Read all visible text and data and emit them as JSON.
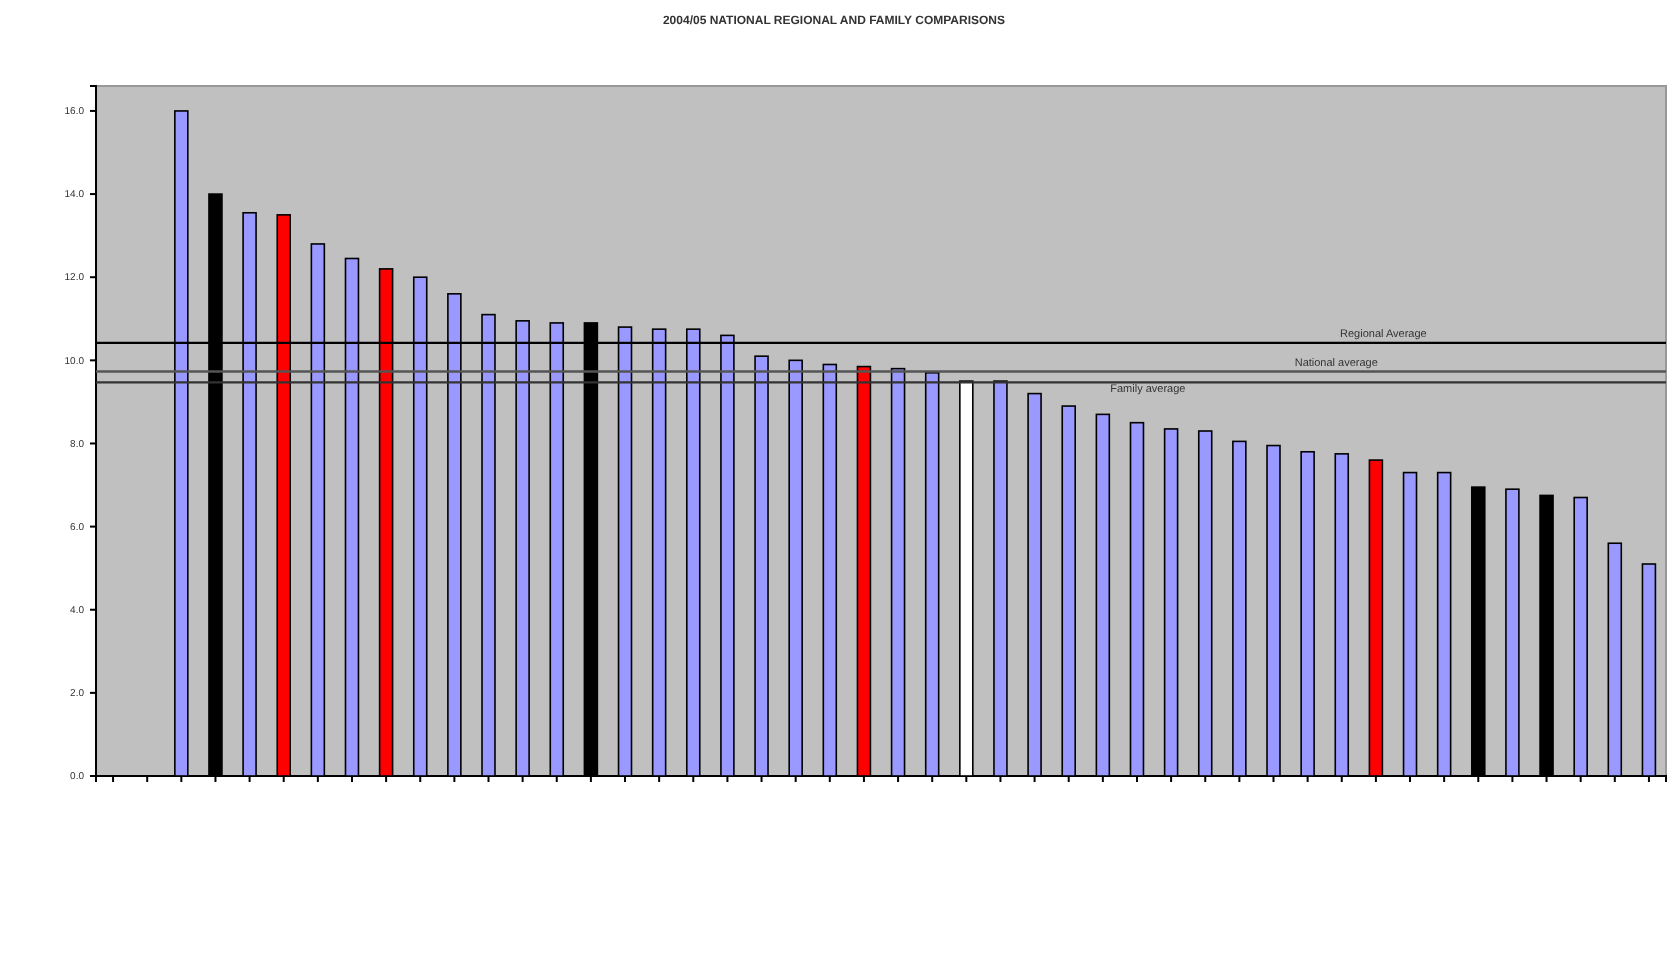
{
  "chart_data": {
    "type": "bar",
    "title": "2004/05 NATIONAL REGIONAL AND FAMILY COMPARISONS",
    "categories": [
      null,
      null,
      null,
      null,
      null,
      null,
      null,
      null,
      null,
      null,
      null,
      null,
      null,
      null,
      null,
      null,
      null,
      null,
      null,
      null,
      null,
      null,
      null,
      null,
      null,
      null,
      null,
      null,
      null,
      null,
      null,
      null,
      null,
      null,
      null,
      null,
      null,
      null,
      null,
      null,
      null,
      null,
      null,
      null,
      null,
      null
    ],
    "values": [
      null,
      null,
      16.0,
      14.0,
      13.55,
      13.5,
      12.8,
      12.45,
      12.2,
      12.0,
      11.6,
      11.1,
      10.95,
      10.9,
      10.9,
      10.8,
      10.75,
      10.75,
      10.6,
      10.1,
      10.0,
      9.9,
      9.85,
      9.8,
      9.7,
      9.5,
      9.5,
      9.2,
      8.9,
      8.7,
      8.5,
      8.35,
      8.3,
      8.05,
      7.95,
      7.8,
      7.75,
      7.6,
      7.3,
      7.3,
      6.95,
      6.9,
      6.75,
      6.7,
      5.6,
      5.1
    ],
    "colors": [
      null,
      null,
      "#9999ff",
      "#000000",
      "#9999ff",
      "#ff0000",
      "#9999ff",
      "#9999ff",
      "#ff0000",
      "#9999ff",
      "#9999ff",
      "#9999ff",
      "#9999ff",
      "#9999ff",
      "#000000",
      "#9999ff",
      "#9999ff",
      "#9999ff",
      "#9999ff",
      "#9999ff",
      "#9999ff",
      "#9999ff",
      "#ff0000",
      "#9999ff",
      "#9999ff",
      "#ffffff",
      "#9999ff",
      "#9999ff",
      "#9999ff",
      "#9999ff",
      "#9999ff",
      "#9999ff",
      "#9999ff",
      "#9999ff",
      "#9999ff",
      "#9999ff",
      "#9999ff",
      "#ff0000",
      "#9999ff",
      "#9999ff",
      "#000000",
      "#9999ff",
      "#000000",
      "#9999ff",
      "#9999ff",
      "#9999ff"
    ],
    "ylim": [
      0,
      16.6
    ],
    "yticks": [
      {
        "value": 0,
        "label": "0.0"
      },
      {
        "value": 2,
        "label": "2.0"
      },
      {
        "value": 4,
        "label": "4.0"
      },
      {
        "value": 6,
        "label": "6.0"
      },
      {
        "value": 8,
        "label": "8.0"
      },
      {
        "value": 10,
        "label": "10.0"
      },
      {
        "value": 12,
        "label": "12.0"
      },
      {
        "value": 14,
        "label": "14.0"
      },
      {
        "value": 16,
        "label": "16.0"
      }
    ],
    "ref_lines": [
      {
        "axis": "y",
        "value": 10.42,
        "label": "Regional Average",
        "color": "#000000"
      },
      {
        "axis": "y",
        "value": 9.73,
        "label": "National average",
        "color": "#555555"
      },
      {
        "axis": "y",
        "value": 9.47,
        "label": "Family average",
        "color": "#333333"
      }
    ],
    "grid": false
  }
}
